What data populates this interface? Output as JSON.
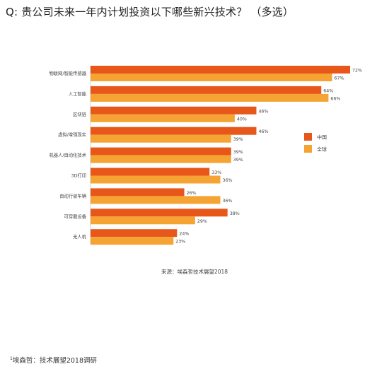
{
  "title": "Q: 贵公司未来一年内计划投资以下哪些新兴技术？ （多选）",
  "source": "来源：埃森哲技术展望2018",
  "footnote": {
    "marker": "1",
    "text": "埃森哲：技术展望2018调研"
  },
  "colors": {
    "china": "#e8571a",
    "global": "#f5a434"
  },
  "chart_data": {
    "type": "bar",
    "orientation": "horizontal",
    "title": "Q: 贵公司未来一年内计划投资以下哪些新兴技术？ （多选）",
    "categories": [
      "物联网/智能传感器",
      "人工智能",
      "区块链",
      "虚拟/增强现实",
      "机器人/自动化技术",
      "3D打印",
      "自动行驶车辆",
      "可穿戴设备",
      "无人机"
    ],
    "series": [
      {
        "name": "中国",
        "values": [
          72,
          64,
          46,
          46,
          39,
          33,
          26,
          38,
          24
        ],
        "labels": [
          "72%",
          "64%",
          "46%",
          "46%",
          "39%",
          "33%",
          "26%",
          "38%",
          "24%"
        ]
      },
      {
        "name": "全球",
        "values": [
          67,
          66,
          40,
          39,
          39,
          36,
          36,
          29,
          23
        ],
        "labels": [
          "67%",
          "66%",
          "40%",
          "39%",
          "39%",
          "36%",
          "36%",
          "29%",
          "23%"
        ]
      }
    ],
    "xlim": [
      0,
      72
    ],
    "grid": false,
    "legend": "right"
  }
}
